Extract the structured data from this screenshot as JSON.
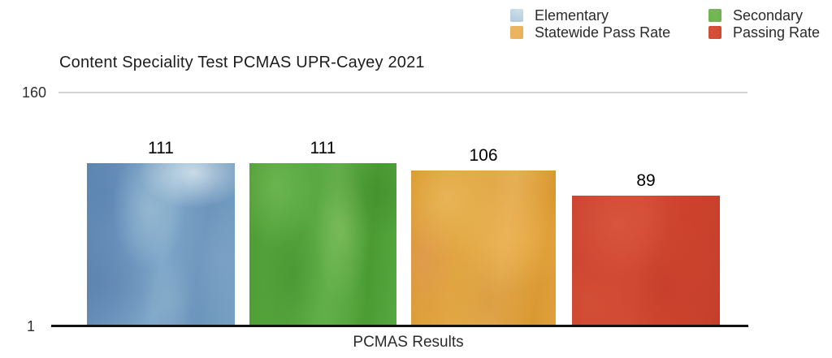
{
  "title": "Content Speciality Test PCMAS UPR-Cayey 2021",
  "axes": {
    "y_top_label": "160",
    "y_bottom_label": "1",
    "x_label": "PCMAS Results"
  },
  "legend": {
    "position": "top-right",
    "columns": 2
  },
  "chart_data": {
    "type": "bar",
    "title": "Content Speciality Test PCMAS UPR-Cayey 2021",
    "categories": [
      "Elementary",
      "Secondary",
      "Statewide Pass Rate",
      "Passing Rate"
    ],
    "values": [
      111,
      111,
      106,
      89
    ],
    "colors": [
      "#6d9cc6",
      "#4aa23a",
      "#dfa137",
      "#c8432e"
    ],
    "xlabel": "PCMAS Results",
    "ylabel": "",
    "ylim": [
      1,
      160
    ],
    "yticks": [
      1,
      160
    ],
    "grid": "single top gridline at 160",
    "legend_position": "top-right",
    "bar_texture": "painterly oil-paint style fills",
    "bar_value_labels": [
      "111",
      "111",
      "106",
      "89"
    ]
  }
}
